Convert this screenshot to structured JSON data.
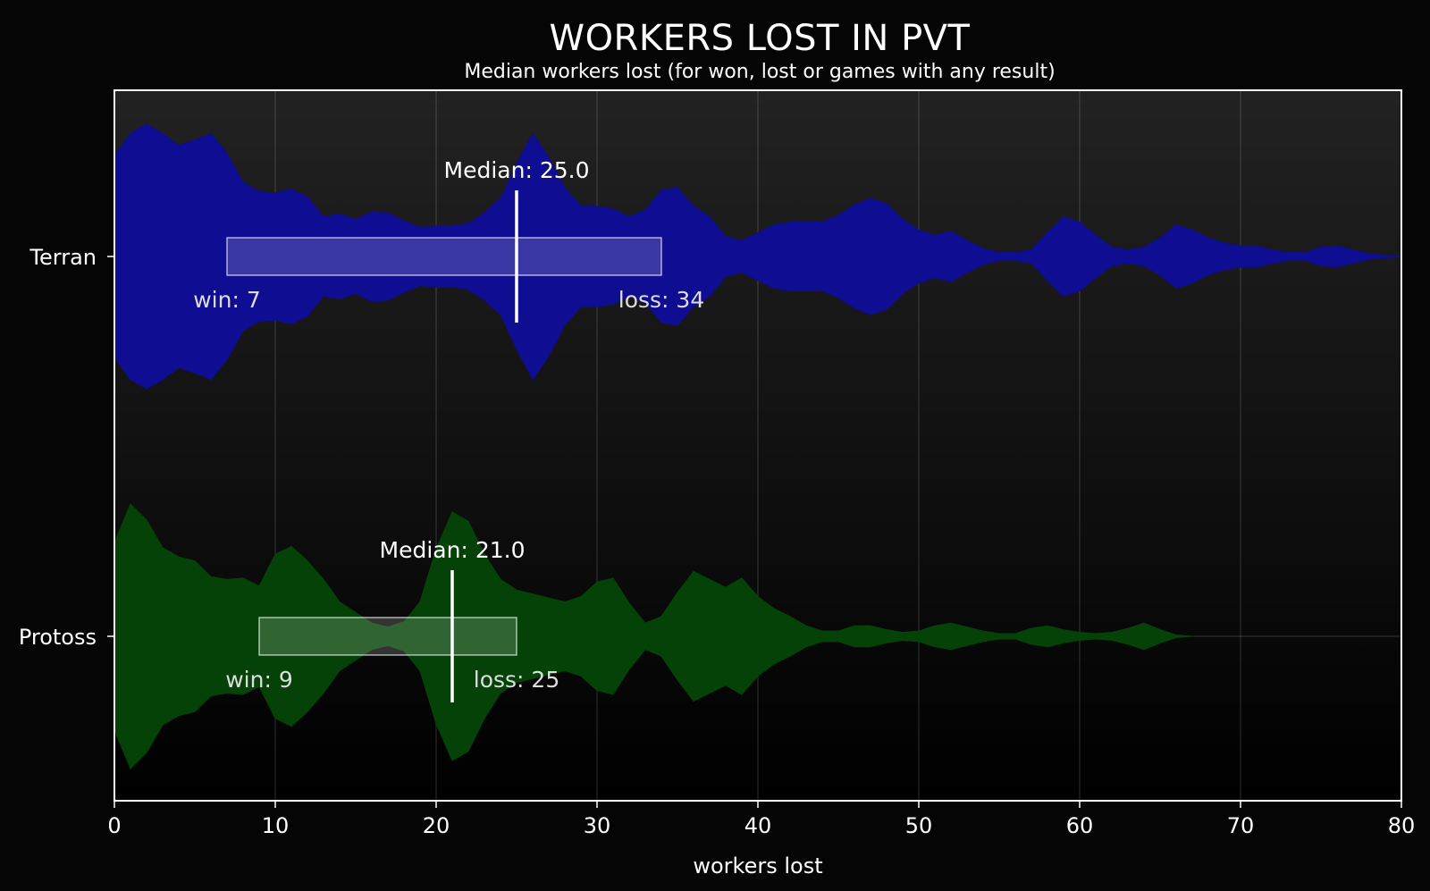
{
  "chart_data": {
    "type": "violin",
    "title": "WORKERS LOST IN PVT",
    "subtitle": "Median workers lost (for won, lost or games with any result)",
    "xlabel": "workers lost",
    "ylabel": "",
    "xlim": [
      0,
      80
    ],
    "x_ticks": [
      0,
      10,
      20,
      30,
      40,
      50,
      60,
      70,
      80
    ],
    "grid": true,
    "categories": [
      "Terran",
      "Protoss"
    ],
    "colors": {
      "Terran": "#0f0d91",
      "Protoss": "#044207",
      "background_top": "#222222",
      "background_bottom": "#000000"
    },
    "series": [
      {
        "name": "Terran",
        "median": 25.0,
        "median_label": "Median: 25.0",
        "win_median": 7,
        "win_label": "win: 7",
        "loss_median": 34,
        "loss_label": "loss: 34",
        "density": [
          [
            0,
            0.76
          ],
          [
            1,
            0.93
          ],
          [
            2,
            1.0
          ],
          [
            3,
            0.93
          ],
          [
            4,
            0.84
          ],
          [
            5,
            0.88
          ],
          [
            6,
            0.93
          ],
          [
            7,
            0.78
          ],
          [
            8,
            0.56
          ],
          [
            9,
            0.49
          ],
          [
            10,
            0.48
          ],
          [
            11,
            0.51
          ],
          [
            12,
            0.45
          ],
          [
            13,
            0.3
          ],
          [
            14,
            0.32
          ],
          [
            15,
            0.28
          ],
          [
            16,
            0.34
          ],
          [
            17,
            0.33
          ],
          [
            18,
            0.27
          ],
          [
            19,
            0.22
          ],
          [
            20,
            0.23
          ],
          [
            21,
            0.23
          ],
          [
            22,
            0.25
          ],
          [
            23,
            0.33
          ],
          [
            24,
            0.44
          ],
          [
            25,
            0.7
          ],
          [
            26,
            0.93
          ],
          [
            27,
            0.75
          ],
          [
            28,
            0.52
          ],
          [
            29,
            0.38
          ],
          [
            30,
            0.38
          ],
          [
            31,
            0.36
          ],
          [
            32,
            0.3
          ],
          [
            33,
            0.35
          ],
          [
            34,
            0.5
          ],
          [
            35,
            0.52
          ],
          [
            36,
            0.38
          ],
          [
            37,
            0.3
          ],
          [
            38,
            0.15
          ],
          [
            39,
            0.12
          ],
          [
            40,
            0.18
          ],
          [
            41,
            0.24
          ],
          [
            42,
            0.26
          ],
          [
            43,
            0.26
          ],
          [
            44,
            0.26
          ],
          [
            45,
            0.31
          ],
          [
            46,
            0.39
          ],
          [
            47,
            0.44
          ],
          [
            48,
            0.4
          ],
          [
            49,
            0.28
          ],
          [
            50,
            0.2
          ],
          [
            51,
            0.16
          ],
          [
            52,
            0.19
          ],
          [
            53,
            0.12
          ],
          [
            54,
            0.06
          ],
          [
            55,
            0.03
          ],
          [
            56,
            0.03
          ],
          [
            57,
            0.05
          ],
          [
            58,
            0.18
          ],
          [
            59,
            0.3
          ],
          [
            60,
            0.26
          ],
          [
            61,
            0.16
          ],
          [
            62,
            0.07
          ],
          [
            63,
            0.05
          ],
          [
            64,
            0.07
          ],
          [
            65,
            0.14
          ],
          [
            66,
            0.24
          ],
          [
            67,
            0.2
          ],
          [
            68,
            0.14
          ],
          [
            69,
            0.1
          ],
          [
            70,
            0.08
          ],
          [
            71,
            0.08
          ],
          [
            72,
            0.05
          ],
          [
            73,
            0.03
          ],
          [
            74,
            0.03
          ],
          [
            75,
            0.07
          ],
          [
            76,
            0.08
          ],
          [
            77,
            0.05
          ],
          [
            78,
            0.02
          ],
          [
            79,
            0.01
          ],
          [
            80,
            0.0
          ]
        ]
      },
      {
        "name": "Protoss",
        "median": 21.0,
        "median_label": "Median: 21.0",
        "win_median": 9,
        "win_label": "win: 9",
        "loss_median": 25,
        "loss_label": "loss: 25",
        "density": [
          [
            0,
            0.71
          ],
          [
            1,
            1.0
          ],
          [
            2,
            0.88
          ],
          [
            3,
            0.67
          ],
          [
            4,
            0.6
          ],
          [
            5,
            0.57
          ],
          [
            6,
            0.45
          ],
          [
            7,
            0.43
          ],
          [
            8,
            0.44
          ],
          [
            9,
            0.38
          ],
          [
            10,
            0.62
          ],
          [
            11,
            0.68
          ],
          [
            12,
            0.57
          ],
          [
            13,
            0.43
          ],
          [
            14,
            0.26
          ],
          [
            15,
            0.18
          ],
          [
            16,
            0.1
          ],
          [
            17,
            0.07
          ],
          [
            18,
            0.11
          ],
          [
            19,
            0.26
          ],
          [
            20,
            0.66
          ],
          [
            21,
            0.94
          ],
          [
            22,
            0.87
          ],
          [
            23,
            0.62
          ],
          [
            24,
            0.43
          ],
          [
            25,
            0.35
          ],
          [
            26,
            0.32
          ],
          [
            27,
            0.29
          ],
          [
            28,
            0.26
          ],
          [
            29,
            0.3
          ],
          [
            30,
            0.41
          ],
          [
            31,
            0.44
          ],
          [
            32,
            0.25
          ],
          [
            33,
            0.1
          ],
          [
            34,
            0.15
          ],
          [
            35,
            0.33
          ],
          [
            36,
            0.49
          ],
          [
            37,
            0.43
          ],
          [
            38,
            0.37
          ],
          [
            39,
            0.44
          ],
          [
            40,
            0.3
          ],
          [
            41,
            0.21
          ],
          [
            42,
            0.15
          ],
          [
            43,
            0.08
          ],
          [
            44,
            0.04
          ],
          [
            45,
            0.04
          ],
          [
            46,
            0.08
          ],
          [
            47,
            0.08
          ],
          [
            48,
            0.05
          ],
          [
            49,
            0.03
          ],
          [
            50,
            0.04
          ],
          [
            51,
            0.08
          ],
          [
            52,
            0.1
          ],
          [
            53,
            0.07
          ],
          [
            54,
            0.04
          ],
          [
            55,
            0.02
          ],
          [
            56,
            0.02
          ],
          [
            57,
            0.06
          ],
          [
            58,
            0.08
          ],
          [
            59,
            0.05
          ],
          [
            60,
            0.03
          ],
          [
            61,
            0.02
          ],
          [
            62,
            0.03
          ],
          [
            63,
            0.06
          ],
          [
            64,
            0.1
          ],
          [
            65,
            0.05
          ],
          [
            66,
            0.01
          ],
          [
            67,
            0.0
          ]
        ]
      }
    ]
  }
}
